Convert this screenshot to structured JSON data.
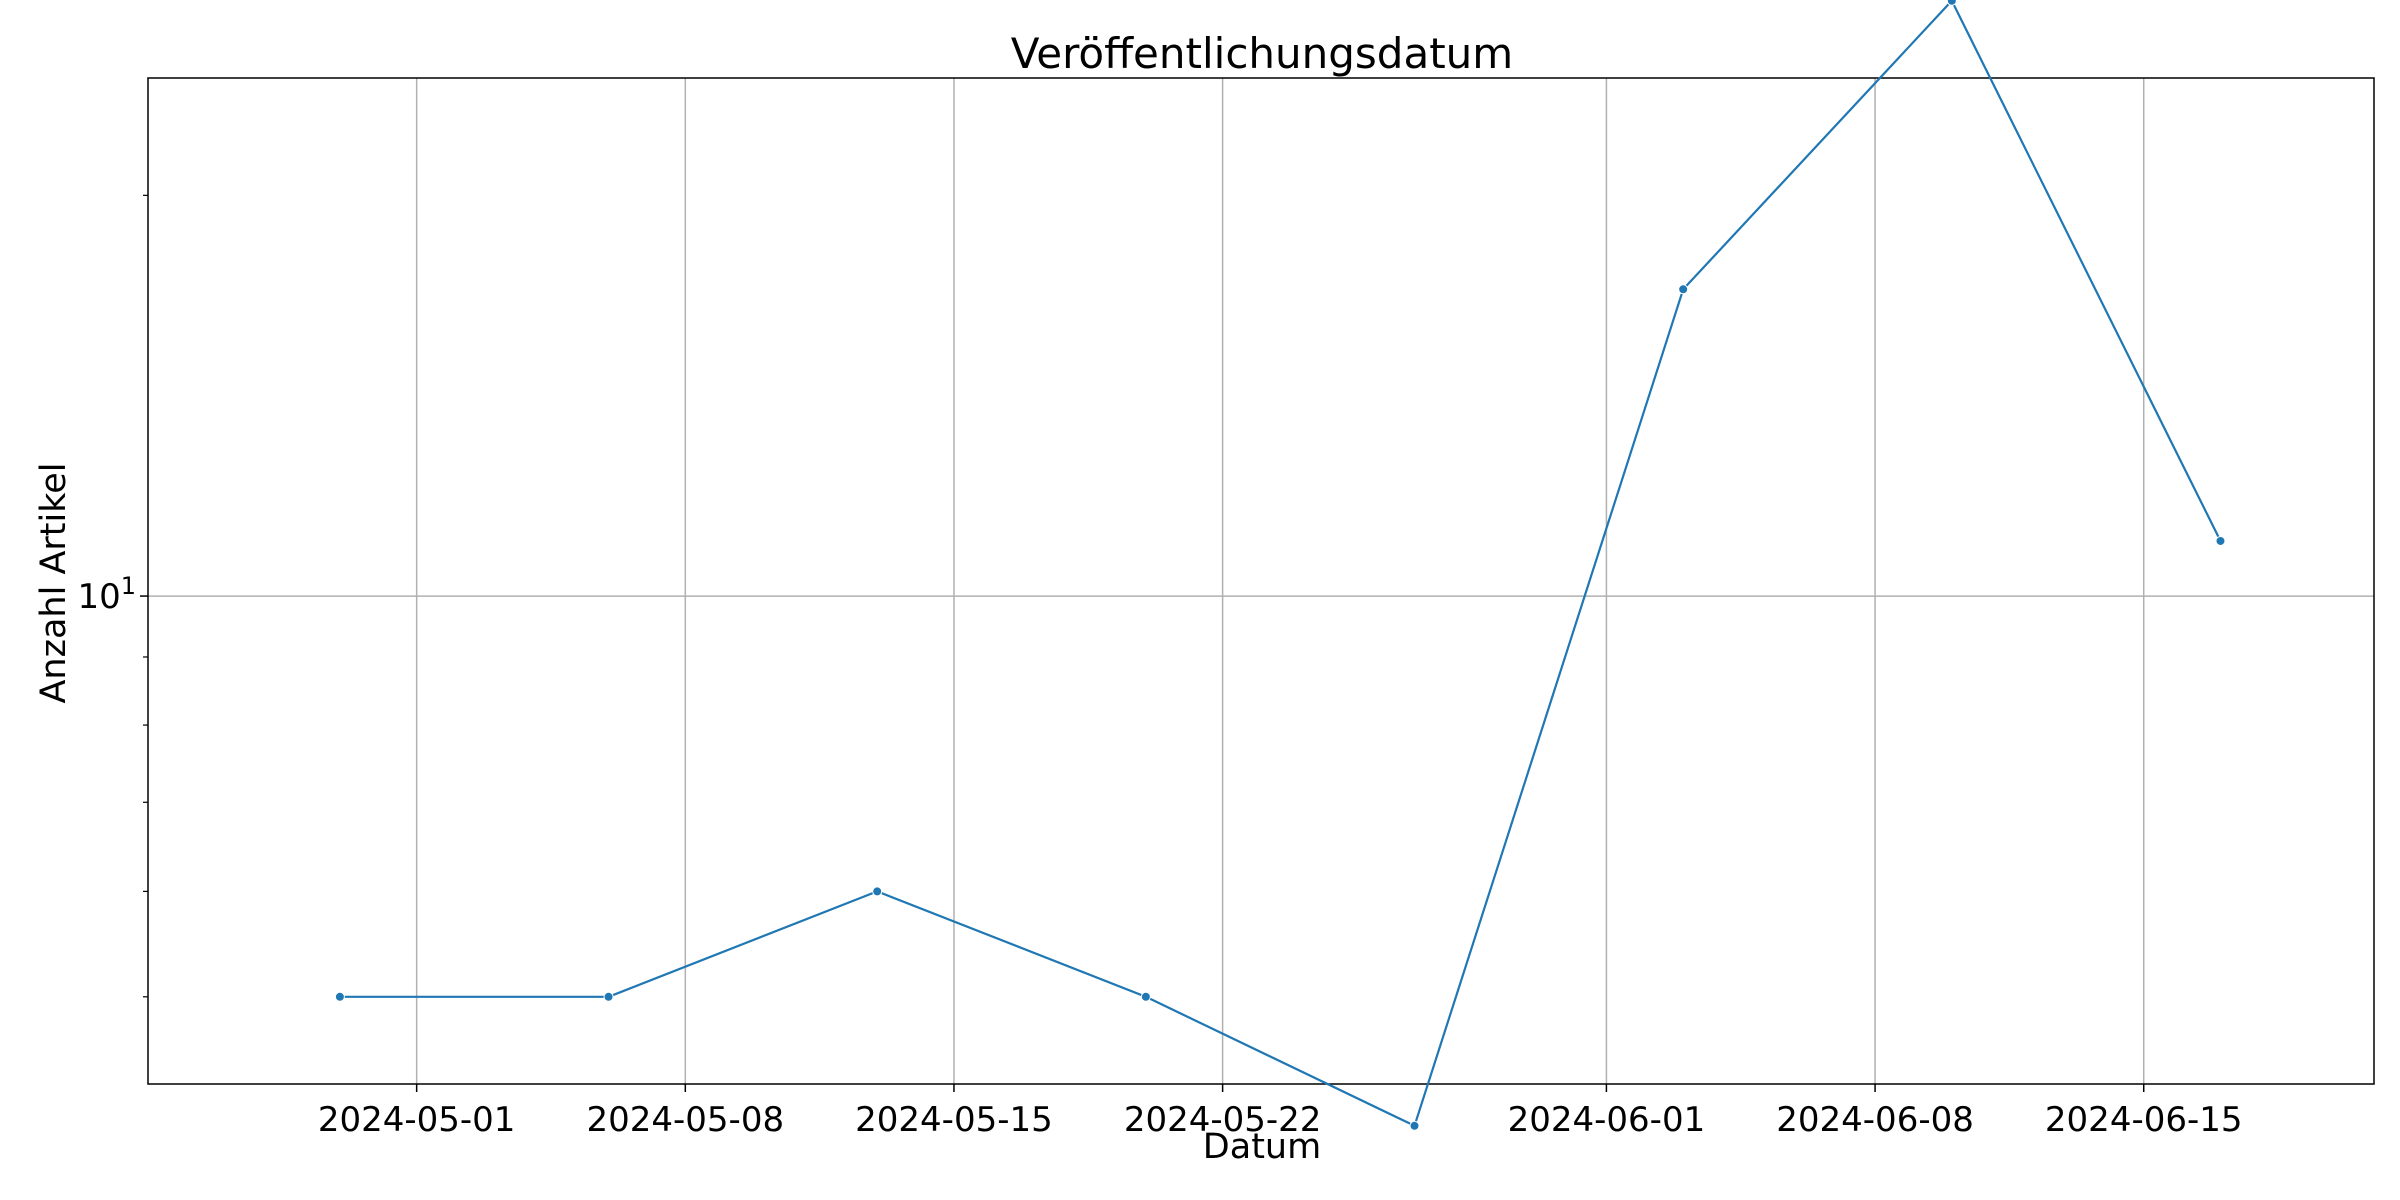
{
  "chart_data": {
    "type": "line",
    "title": "Veröffentlichungsdatum",
    "xlabel": "Datum",
    "ylabel": "Anzahl Artikel",
    "x_scale": "date",
    "y_scale": "log",
    "xlim": [
      "2024-04-24",
      "2024-06-21"
    ],
    "ylim": [
      4.3,
      24.5
    ],
    "grid": true,
    "line_color": "#1f77b4",
    "x_ticks": [
      "2024-05-01",
      "2024-05-08",
      "2024-05-15",
      "2024-05-22",
      "2024-06-01",
      "2024-06-08",
      "2024-06-15"
    ],
    "y_ticks": [
      {
        "value": 10,
        "base": "10",
        "exponent": "1"
      }
    ],
    "series": [
      {
        "x": [
          "2024-04-29",
          "2024-05-06",
          "2024-05-13",
          "2024-05-20",
          "2024-05-27",
          "2024-06-03",
          "2024-06-10",
          "2024-06-17"
        ],
        "values": [
          5,
          5,
          6,
          5,
          4,
          17,
          28,
          11
        ]
      }
    ]
  }
}
